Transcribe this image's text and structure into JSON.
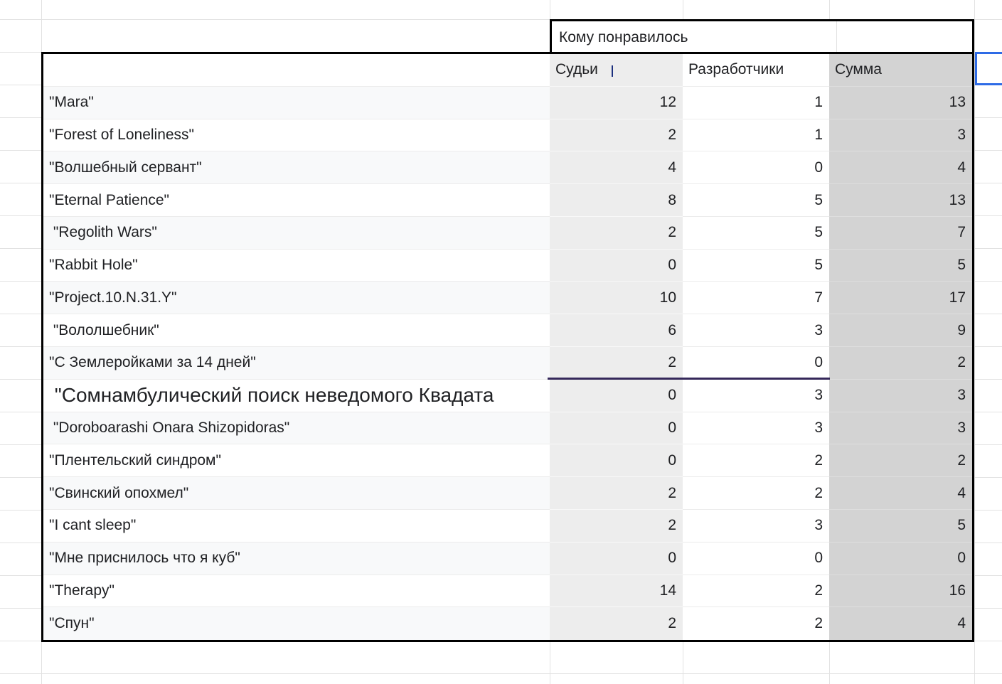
{
  "app": {
    "type": "spreadsheet-grid"
  },
  "merged_header": {
    "label": "Кому понравилось"
  },
  "column_headers": {
    "judges": "Судьи",
    "developers": "Разработчики",
    "sum": "Сумма"
  },
  "rows": [
    {
      "name": "\"Mara\"",
      "judges": "12",
      "developers": "1",
      "sum": "13"
    },
    {
      "name": "\"Forest of Loneliness\"",
      "judges": "2",
      "developers": "1",
      "sum": "3"
    },
    {
      "name": "\"Волшебный сервант\"",
      "judges": "4",
      "developers": "0",
      "sum": "4"
    },
    {
      "name": "\"Eternal Patience\"",
      "judges": "8",
      "developers": "5",
      "sum": "13"
    },
    {
      "name": " \"Regolith Wars\"",
      "judges": "2",
      "developers": "5",
      "sum": "7"
    },
    {
      "name": "\"Rabbit Hole\"",
      "judges": "0",
      "developers": "5",
      "sum": "5"
    },
    {
      "name": "\"Project.10.N.31.Y\"",
      "judges": "10",
      "developers": "7",
      "sum": "17"
    },
    {
      "name": " \"Вололшебник\"",
      "judges": "6",
      "developers": "3",
      "sum": "9"
    },
    {
      "name": "\"С Землеройками за 14 дней\"",
      "judges": "2",
      "developers": "0",
      "sum": "2",
      "purple_bottom_border": true
    },
    {
      "name": " \"Сомнамбулический поиск неведомого Квадата",
      "judges": "0",
      "developers": "3",
      "sum": "3",
      "large_font": true
    },
    {
      "name": " \"Doroboarashi Onara Shizopidoras\"",
      "judges": "0",
      "developers": "3",
      "sum": "3"
    },
    {
      "name": "\"Плентельский синдром\"",
      "judges": "0",
      "developers": "2",
      "sum": "2"
    },
    {
      "name": "\"Свинский опохмел\"",
      "judges": "2",
      "developers": "2",
      "sum": "4"
    },
    {
      "name": "\"I cant sleep\"",
      "judges": "2",
      "developers": "3",
      "sum": "5"
    },
    {
      "name": "\"Мне приснилось что я куб\"",
      "judges": "0",
      "developers": "0",
      "sum": "0"
    },
    {
      "name": "\"Therapy\"",
      "judges": "14",
      "developers": "2",
      "sum": "16"
    },
    {
      "name": "\"Спун\"",
      "judges": "2",
      "developers": "2",
      "sum": "4"
    }
  ],
  "selection": {
    "value": ""
  },
  "colors": {
    "band": "#f8f9fa",
    "judges_col": "#ededed",
    "sum_col": "#d3d3d3",
    "gridline": "#e2e2e2",
    "table_border": "#000000",
    "selection_blue": "#2e6be6",
    "range_purple": "#35285a",
    "text": "#202124"
  }
}
